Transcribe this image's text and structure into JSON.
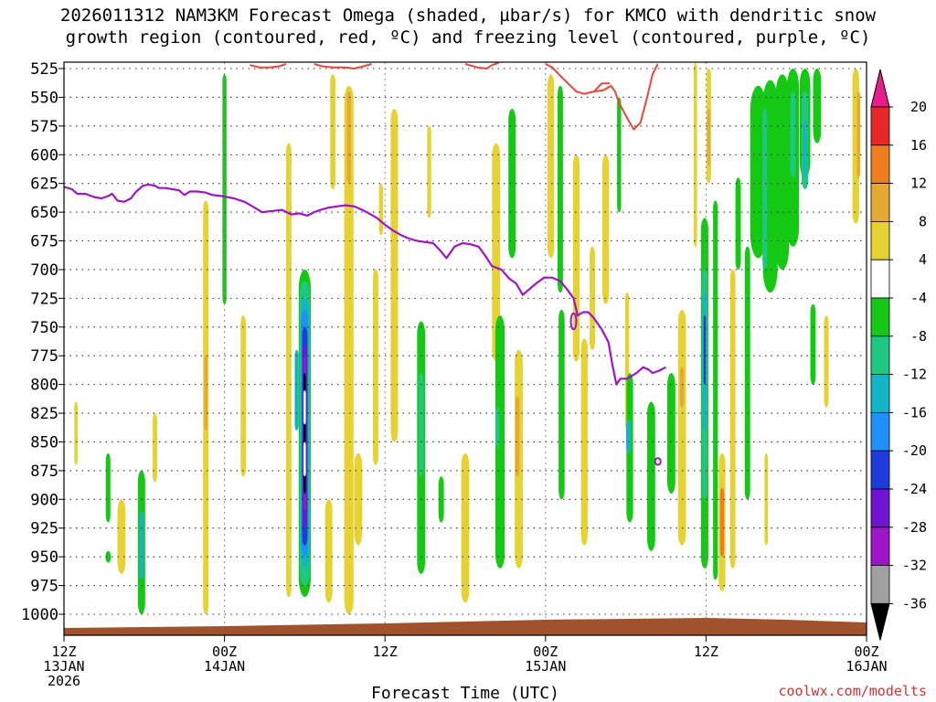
{
  "title_line1": "2026011312 NAM3KM Forecast Omega (shaded, µbar/s) for KMCO with dendritic snow",
  "title_line2": "growth region (contoured, red, ºC) and freezing level (contoured, purple, ºC)",
  "credit": "coolwx.com/modelts",
  "chart_data": {
    "type": "heatmap",
    "xlabel": "Forecast Time (UTC)",
    "ylabel": "",
    "x_range_hours": [
      0,
      60
    ],
    "y_range_hpa": [
      1000,
      525
    ],
    "pressure_ticks": [
      525,
      550,
      575,
      600,
      625,
      650,
      675,
      700,
      725,
      750,
      775,
      800,
      825,
      850,
      875,
      900,
      925,
      950,
      975,
      1000
    ],
    "time_ticks": [
      {
        "hour": 0,
        "line1": "12Z",
        "line2": "13JAN",
        "line3": "2026"
      },
      {
        "hour": 12,
        "line1": "00Z",
        "line2": "14JAN",
        "line3": ""
      },
      {
        "hour": 24,
        "line1": "12Z",
        "line2": "",
        "line3": ""
      },
      {
        "hour": 36,
        "line1": "00Z",
        "line2": "15JAN",
        "line3": ""
      },
      {
        "hour": 48,
        "line1": "12Z",
        "line2": "",
        "line3": ""
      },
      {
        "hour": 60,
        "line1": "00Z",
        "line2": "16JAN",
        "line3": ""
      }
    ],
    "colorbar": {
      "labels": [
        "20",
        "16",
        "12",
        "8",
        "4",
        "-4",
        "-8",
        "-12",
        "-16",
        "-20",
        "-24",
        "-28",
        "-32",
        "-36"
      ],
      "bins": [
        {
          "from": 16,
          "to": 20,
          "color": "#e82828"
        },
        {
          "from": 12,
          "to": 16,
          "color": "#ee7d1e"
        },
        {
          "from": 8,
          "to": 12,
          "color": "#e6aa32"
        },
        {
          "from": 4,
          "to": 8,
          "color": "#e6d232"
        },
        {
          "from": -4,
          "to": 4,
          "color": "#ffffff"
        },
        {
          "from": -8,
          "to": -4,
          "color": "#14c814"
        },
        {
          "from": -12,
          "to": -8,
          "color": "#1ec882"
        },
        {
          "from": -16,
          "to": -12,
          "color": "#14b4c8"
        },
        {
          "from": -20,
          "to": -16,
          "color": "#1e90ff"
        },
        {
          "from": -24,
          "to": -20,
          "color": "#1e3cdc"
        },
        {
          "from": -28,
          "to": -24,
          "color": "#6e14d2"
        },
        {
          "from": -32,
          "to": -28,
          "color": "#a014c8"
        },
        {
          "from": -36,
          "to": -32,
          "color": "#a0a0a0"
        }
      ],
      "over_color": "#e61e8c",
      "under_color": "#000000"
    },
    "omega_cells": [
      {
        "t": 0.9,
        "p0": 815,
        "p1": 870,
        "w": 0.25,
        "v": 5
      },
      {
        "t": 3.3,
        "p0": 860,
        "p1": 920,
        "w": 0.35,
        "v": -6
      },
      {
        "t": 3.3,
        "p0": 945,
        "p1": 955,
        "w": 0.4,
        "v": -6
      },
      {
        "t": 4.3,
        "p0": 900,
        "p1": 965,
        "w": 0.6,
        "v": 5
      },
      {
        "t": 5.8,
        "p0": 875,
        "p1": 1000,
        "w": 0.55,
        "v": -6
      },
      {
        "t": 5.8,
        "p0": 910,
        "p1": 970,
        "w": 0.3,
        "v": -14
      },
      {
        "t": 6.8,
        "p0": 825,
        "p1": 885,
        "w": 0.35,
        "v": 5
      },
      {
        "t": 10.6,
        "p0": 640,
        "p1": 1000,
        "w": 0.4,
        "v": 5
      },
      {
        "t": 10.6,
        "p0": 775,
        "p1": 840,
        "w": 0.25,
        "v": 9
      },
      {
        "t": 12.0,
        "p0": 530,
        "p1": 730,
        "w": 0.3,
        "v": -6
      },
      {
        "t": 13.4,
        "p0": 740,
        "p1": 880,
        "w": 0.4,
        "v": 5
      },
      {
        "t": 16.8,
        "p0": 590,
        "p1": 985,
        "w": 0.4,
        "v": 5
      },
      {
        "t": 17.4,
        "p0": 770,
        "p1": 840,
        "w": 0.3,
        "v": -14
      },
      {
        "t": 18.0,
        "p0": 700,
        "p1": 985,
        "w": 0.9,
        "v": -6
      },
      {
        "t": 18.0,
        "p0": 710,
        "p1": 975,
        "w": 0.75,
        "v": -10
      },
      {
        "t": 18.0,
        "p0": 725,
        "p1": 960,
        "w": 0.6,
        "v": -14
      },
      {
        "t": 18.0,
        "p0": 735,
        "p1": 950,
        "w": 0.5,
        "v": -18
      },
      {
        "t": 18.0,
        "p0": 750,
        "p1": 940,
        "w": 0.4,
        "v": -22
      },
      {
        "t": 18.0,
        "p0": 765,
        "p1": 925,
        "w": 0.3,
        "v": -26
      },
      {
        "t": 18.0,
        "p0": 775,
        "p1": 910,
        "w": 0.22,
        "v": -30
      },
      {
        "t": 18.0,
        "p0": 790,
        "p1": 895,
        "w": 0.1,
        "v": -38
      },
      {
        "t": 18.0,
        "p0": 805,
        "p1": 835,
        "w": 0.06,
        "v": 0
      },
      {
        "t": 18.0,
        "p0": 850,
        "p1": 880,
        "w": 0.06,
        "v": 0
      },
      {
        "t": 19.8,
        "p0": 900,
        "p1": 990,
        "w": 0.55,
        "v": 5
      },
      {
        "t": 20.1,
        "p0": 530,
        "p1": 630,
        "w": 0.4,
        "v": 5
      },
      {
        "t": 21.3,
        "p0": 540,
        "p1": 1000,
        "w": 0.7,
        "v": 5
      },
      {
        "t": 21.3,
        "p0": 545,
        "p1": 625,
        "w": 0.3,
        "v": 10
      },
      {
        "t": 22.0,
        "p0": 860,
        "p1": 940,
        "w": 0.6,
        "v": 5
      },
      {
        "t": 23.3,
        "p0": 700,
        "p1": 870,
        "w": 0.4,
        "v": 5
      },
      {
        "t": 23.7,
        "p0": 625,
        "p1": 670,
        "w": 0.3,
        "v": 5
      },
      {
        "t": 24.7,
        "p0": 560,
        "p1": 850,
        "w": 0.55,
        "v": 5
      },
      {
        "t": 26.7,
        "p0": 745,
        "p1": 965,
        "w": 0.6,
        "v": -6
      },
      {
        "t": 26.7,
        "p0": 790,
        "p1": 880,
        "w": 0.35,
        "v": -12
      },
      {
        "t": 27.3,
        "p0": 575,
        "p1": 655,
        "w": 0.3,
        "v": 5
      },
      {
        "t": 28.2,
        "p0": 880,
        "p1": 920,
        "w": 0.4,
        "v": -6
      },
      {
        "t": 30.0,
        "p0": 860,
        "p1": 990,
        "w": 0.6,
        "v": 5
      },
      {
        "t": 32.3,
        "p0": 590,
        "p1": 780,
        "w": 0.6,
        "v": 5
      },
      {
        "t": 32.6,
        "p0": 740,
        "p1": 960,
        "w": 0.7,
        "v": -6
      },
      {
        "t": 32.4,
        "p0": 820,
        "p1": 855,
        "w": 0.3,
        "v": -12
      },
      {
        "t": 33.5,
        "p0": 560,
        "p1": 690,
        "w": 0.55,
        "v": -6
      },
      {
        "t": 34.0,
        "p0": 770,
        "p1": 960,
        "w": 0.6,
        "v": 5
      },
      {
        "t": 33.9,
        "p0": 810,
        "p1": 880,
        "w": 0.3,
        "v": 10
      },
      {
        "t": 36.4,
        "p0": 530,
        "p1": 690,
        "w": 0.5,
        "v": 5
      },
      {
        "t": 37.1,
        "p0": 540,
        "p1": 720,
        "w": 0.4,
        "v": -6
      },
      {
        "t": 38.3,
        "p0": 600,
        "p1": 780,
        "w": 0.5,
        "v": 5
      },
      {
        "t": 37.2,
        "p0": 735,
        "p1": 900,
        "w": 0.45,
        "v": -6
      },
      {
        "t": 38.9,
        "p0": 760,
        "p1": 940,
        "w": 0.5,
        "v": 5
      },
      {
        "t": 39.5,
        "p0": 680,
        "p1": 770,
        "w": 0.4,
        "v": 5
      },
      {
        "t": 40.5,
        "p0": 600,
        "p1": 730,
        "w": 0.5,
        "v": 5
      },
      {
        "t": 41.5,
        "p0": 550,
        "p1": 650,
        "w": 0.3,
        "v": -6
      },
      {
        "t": 42.1,
        "p0": 720,
        "p1": 840,
        "w": 0.3,
        "v": 5
      },
      {
        "t": 42.3,
        "p0": 790,
        "p1": 920,
        "w": 0.5,
        "v": -6
      },
      {
        "t": 42.2,
        "p0": 830,
        "p1": 860,
        "w": 0.35,
        "v": -14
      },
      {
        "t": 43.9,
        "p0": 815,
        "p1": 945,
        "w": 0.6,
        "v": -6
      },
      {
        "t": 45.4,
        "p0": 790,
        "p1": 895,
        "w": 0.6,
        "v": -6
      },
      {
        "t": 46.2,
        "p0": 735,
        "p1": 940,
        "w": 0.6,
        "v": 5
      },
      {
        "t": 46.2,
        "p0": 785,
        "p1": 820,
        "w": 0.3,
        "v": 10
      },
      {
        "t": 47.2,
        "p0": 520,
        "p1": 680,
        "w": 0.25,
        "v": 5
      },
      {
        "t": 48.2,
        "p0": 525,
        "p1": 625,
        "w": 0.35,
        "v": 5
      },
      {
        "t": 48.2,
        "p0": 560,
        "p1": 610,
        "w": 0.2,
        "v": 10
      },
      {
        "t": 47.9,
        "p0": 655,
        "p1": 960,
        "w": 0.55,
        "v": -6
      },
      {
        "t": 47.9,
        "p0": 700,
        "p1": 900,
        "w": 0.4,
        "v": -10
      },
      {
        "t": 47.9,
        "p0": 720,
        "p1": 840,
        "w": 0.3,
        "v": -14
      },
      {
        "t": 47.9,
        "p0": 740,
        "p1": 800,
        "w": 0.15,
        "v": -22
      },
      {
        "t": 48.7,
        "p0": 640,
        "p1": 970,
        "w": 0.35,
        "v": -6
      },
      {
        "t": 49.2,
        "p0": 860,
        "p1": 980,
        "w": 0.5,
        "v": 5
      },
      {
        "t": 49.2,
        "p0": 890,
        "p1": 950,
        "w": 0.3,
        "v": 12
      },
      {
        "t": 50.0,
        "p0": 700,
        "p1": 960,
        "w": 0.4,
        "v": 5
      },
      {
        "t": 50.4,
        "p0": 620,
        "p1": 700,
        "w": 0.4,
        "v": -6
      },
      {
        "t": 51.1,
        "p0": 680,
        "p1": 900,
        "w": 0.4,
        "v": -6
      },
      {
        "t": 51.9,
        "p0": 540,
        "p1": 690,
        "w": 1.2,
        "v": -6
      },
      {
        "t": 52.8,
        "p0": 535,
        "p1": 720,
        "w": 1.1,
        "v": -6
      },
      {
        "t": 52.4,
        "p0": 560,
        "p1": 700,
        "w": 0.35,
        "v": -10
      },
      {
        "t": 52.5,
        "p0": 860,
        "p1": 940,
        "w": 0.25,
        "v": 5
      },
      {
        "t": 53.7,
        "p0": 530,
        "p1": 700,
        "w": 1.0,
        "v": -6
      },
      {
        "t": 54.5,
        "p0": 525,
        "p1": 680,
        "w": 0.9,
        "v": -6
      },
      {
        "t": 54.5,
        "p0": 545,
        "p1": 620,
        "w": 0.4,
        "v": -10
      },
      {
        "t": 55.4,
        "p0": 525,
        "p1": 620,
        "w": 0.8,
        "v": -6
      },
      {
        "t": 55.4,
        "p0": 545,
        "p1": 630,
        "w": 0.5,
        "v": -10
      },
      {
        "t": 55.4,
        "p0": 570,
        "p1": 620,
        "w": 0.25,
        "v": -14
      },
      {
        "t": 56.3,
        "p0": 525,
        "p1": 590,
        "w": 0.6,
        "v": -6
      },
      {
        "t": 56.0,
        "p0": 730,
        "p1": 800,
        "w": 0.4,
        "v": -6
      },
      {
        "t": 57.0,
        "p0": 740,
        "p1": 820,
        "w": 0.35,
        "v": 5
      },
      {
        "t": 59.2,
        "p0": 525,
        "p1": 660,
        "w": 0.5,
        "v": 5
      },
      {
        "t": 59.4,
        "p0": 545,
        "p1": 620,
        "w": 0.25,
        "v": 10
      }
    ],
    "freezing_level": {
      "label": "0",
      "color": "#a014c8",
      "points": [
        [
          0,
          628
        ],
        [
          0.6,
          630
        ],
        [
          1.0,
          634
        ],
        [
          1.6,
          634
        ],
        [
          2.3,
          637
        ],
        [
          2.8,
          638
        ],
        [
          3.3,
          636
        ],
        [
          3.6,
          634
        ],
        [
          4.0,
          640
        ],
        [
          4.5,
          641
        ],
        [
          5.0,
          638
        ],
        [
          5.4,
          632
        ],
        [
          5.9,
          627
        ],
        [
          6.3,
          626
        ],
        [
          6.8,
          627
        ],
        [
          7.1,
          629
        ],
        [
          7.6,
          629
        ],
        [
          8.1,
          630
        ],
        [
          8.6,
          631
        ],
        [
          9.0,
          635
        ],
        [
          9.4,
          632
        ],
        [
          10.0,
          632
        ],
        [
          10.6,
          633
        ],
        [
          11.1,
          635
        ],
        [
          11.8,
          636
        ],
        [
          12.3,
          637
        ],
        [
          12.7,
          638
        ],
        [
          13.5,
          641
        ],
        [
          14.1,
          645
        ],
        [
          14.8,
          650
        ],
        [
          15.6,
          649
        ],
        [
          16.3,
          648
        ],
        [
          17.0,
          652
        ],
        [
          17.6,
          651
        ],
        [
          18.2,
          653
        ],
        [
          18.7,
          650
        ],
        [
          19.2,
          648
        ],
        [
          19.8,
          646
        ],
        [
          20.4,
          645
        ],
        [
          21.0,
          644
        ],
        [
          21.7,
          645
        ],
        [
          22.3,
          648
        ],
        [
          22.8,
          651
        ],
        [
          23.4,
          655
        ],
        [
          24.0,
          661
        ],
        [
          24.6,
          666
        ],
        [
          25.2,
          670
        ],
        [
          25.8,
          673
        ],
        [
          26.4,
          675
        ],
        [
          27.0,
          676
        ],
        [
          27.6,
          677
        ],
        [
          28.1,
          683
        ],
        [
          28.6,
          690
        ],
        [
          29.2,
          680
        ],
        [
          29.8,
          677
        ],
        [
          30.4,
          678
        ],
        [
          31.0,
          680
        ],
        [
          31.5,
          688
        ],
        [
          32.0,
          697
        ],
        [
          32.7,
          700
        ],
        [
          33.3,
          708
        ],
        [
          33.8,
          712
        ],
        [
          34.3,
          722
        ],
        [
          34.8,
          717
        ],
        [
          35.3,
          712
        ],
        [
          35.9,
          707
        ],
        [
          36.5,
          707
        ],
        [
          37.1,
          710
        ],
        [
          37.6,
          717
        ],
        [
          38.1,
          725
        ],
        [
          38.4,
          740
        ],
        [
          38.8,
          737
        ],
        [
          39.2,
          737
        ],
        [
          39.6,
          742
        ],
        [
          40.2,
          752
        ],
        [
          40.7,
          763
        ],
        [
          41.0,
          783
        ],
        [
          41.3,
          800
        ],
        [
          41.6,
          795
        ],
        [
          42.1,
          795
        ],
        [
          42.8,
          790
        ],
        [
          43.3,
          785
        ],
        [
          43.7,
          787
        ],
        [
          44.0,
          790
        ],
        [
          44.5,
          788
        ],
        [
          45.0,
          785
        ]
      ],
      "islands": [
        {
          "t": 38.1,
          "p": 745,
          "rt": 0.13,
          "rp": 7
        },
        {
          "t": 44.4,
          "p": 867,
          "rt": 0.2,
          "rp": 3
        }
      ]
    },
    "dgz_top": {
      "color": "#e6463c",
      "segments": [
        [
          [
            18.7,
            521
          ],
          [
            19.3,
            523
          ],
          [
            20.1,
            524
          ],
          [
            21.0,
            524
          ],
          [
            21.7,
            525
          ],
          [
            22.4,
            523
          ],
          [
            23.0,
            521
          ]
        ],
        [
          [
            30.0,
            521
          ],
          [
            30.9,
            524
          ],
          [
            31.6,
            525
          ],
          [
            32.0,
            522
          ],
          [
            32.5,
            520
          ]
        ],
        [
          [
            36.0,
            521
          ],
          [
            36.5,
            524
          ],
          [
            37.0,
            530
          ],
          [
            37.6,
            537
          ],
          [
            38.3,
            545
          ],
          [
            38.9,
            547
          ],
          [
            39.6,
            545
          ],
          [
            40.3,
            544
          ],
          [
            40.9,
            540
          ],
          [
            41.2,
            545
          ],
          [
            41.5,
            555
          ],
          [
            42.2,
            570
          ],
          [
            42.6,
            578
          ],
          [
            43.1,
            572
          ],
          [
            43.6,
            550
          ],
          [
            44.0,
            530
          ],
          [
            44.4,
            521
          ]
        ],
        [
          [
            13.9,
            522
          ],
          [
            14.6,
            524
          ],
          [
            15.4,
            524
          ],
          [
            16.1,
            523
          ],
          [
            16.6,
            521
          ]
        ],
        [
          [
            39.7,
            544
          ],
          [
            40.2,
            538
          ],
          [
            40.8,
            538
          ]
        ]
      ]
    }
  }
}
